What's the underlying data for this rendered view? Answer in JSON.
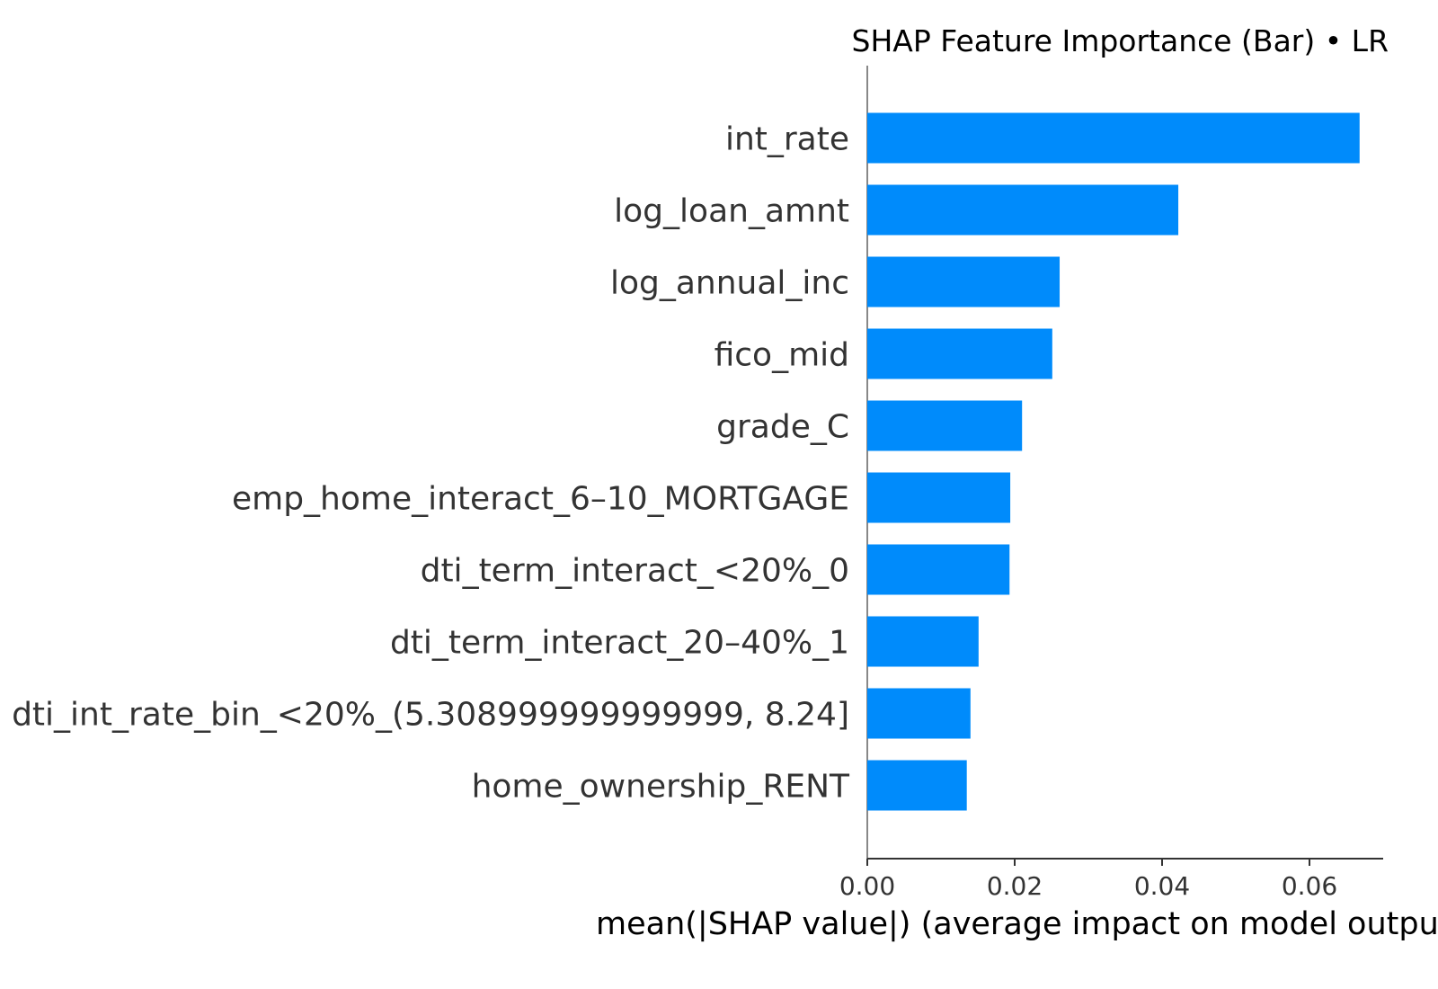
{
  "chart_data": {
    "type": "bar",
    "orientation": "horizontal",
    "title": "SHAP Feature Importance (Bar) • LR",
    "xlabel": "mean(|SHAP value|) (average impact on model output magnitude)",
    "ylabel": "",
    "categories": [
      "int_rate",
      "log_loan_amnt",
      "log_annual_inc",
      "fico_mid",
      "grade_C",
      "emp_home_interact_6–10_MORTGAGE",
      "dti_term_interact_<20%_0",
      "dti_term_interact_20–40%_1",
      "dti_int_rate_bin_<20%_(5.308999999999999, 8.24]",
      "home_ownership_RENT"
    ],
    "values": [
      0.0668,
      0.0422,
      0.0261,
      0.0251,
      0.021,
      0.0194,
      0.0193,
      0.0151,
      0.014,
      0.0135
    ],
    "xlim": [
      0,
      0.07
    ],
    "xticks": [
      0.0,
      0.02,
      0.04,
      0.06
    ],
    "xtick_labels": [
      "0.00",
      "0.02",
      "0.04",
      "0.06"
    ],
    "grid": false,
    "legend": "none",
    "bar_color": "#008bfb",
    "axis_color": "#888888"
  }
}
